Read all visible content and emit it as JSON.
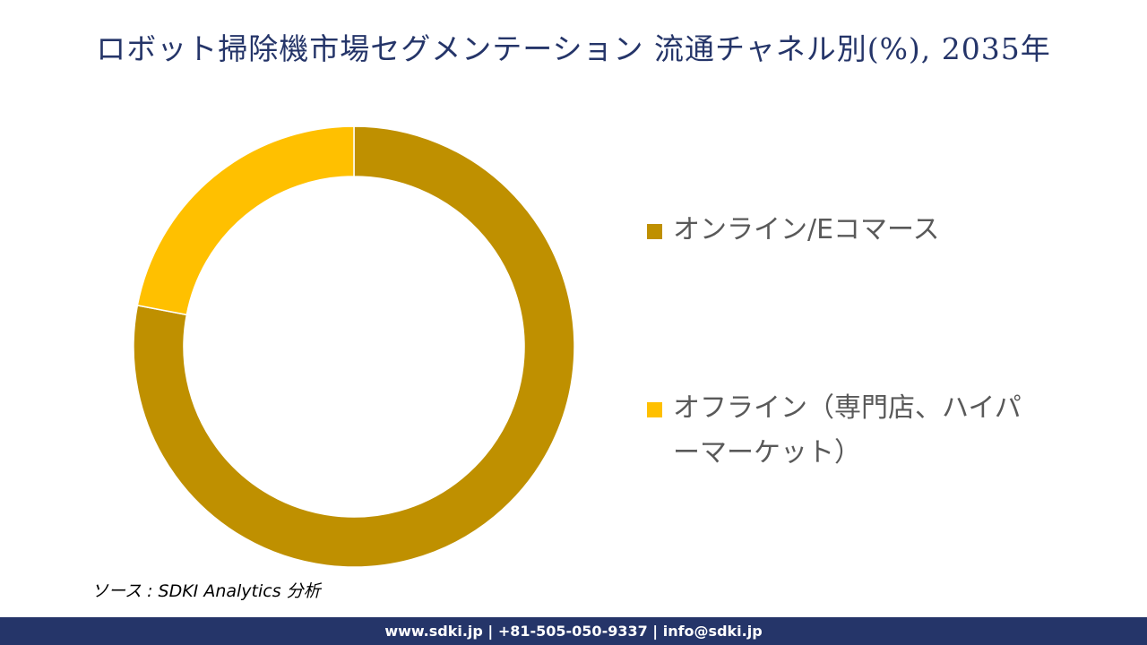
{
  "title": "ロボット掃除機市場セグメンテーション 流通チャネル別(%), 2035年",
  "chart_data": {
    "type": "pie",
    "subtype": "donut",
    "title": "ロボット掃除機市場セグメンテーション 流通チャネル別(%), 2035年",
    "categories": [
      "オンライン/Eコマース",
      "オフライン（専門店、ハイパーマーケット）"
    ],
    "values": [
      78,
      22
    ],
    "unit": "%",
    "colors": [
      "#BF9000",
      "#FFC000"
    ],
    "start_angle_deg": 0,
    "direction": "clockwise",
    "data_labels": false,
    "legend_position": "right"
  },
  "legend": {
    "items": [
      {
        "label": "オンライン/Eコマース",
        "color": "#BF9000"
      },
      {
        "label": "オフライン（専門店、ハイパーマーケット）",
        "color": "#FFC000"
      }
    ]
  },
  "source": "ソース : SDKI Analytics  分析",
  "footer": {
    "contact": "www.sdki.jp | +81-505-050-9337 | info@sdki.jp"
  },
  "colors": {
    "title": "#253569",
    "footer_bg": "#253569",
    "legend_text": "#595959"
  }
}
